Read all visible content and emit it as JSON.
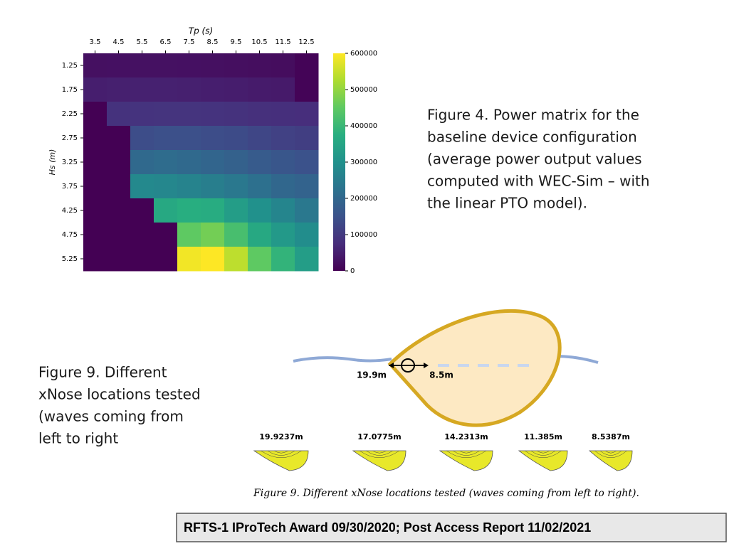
{
  "chart_data": {
    "type": "heatmap",
    "x_label": "Tp (s)",
    "y_label": "Hs (m)",
    "x_categories": [
      "3.5",
      "4.5",
      "5.5",
      "6.5",
      "7.5",
      "8.5",
      "9.5",
      "10.5",
      "11.5",
      "12.5"
    ],
    "y_categories": [
      "1.25",
      "1.75",
      "2.25",
      "2.75",
      "3.25",
      "3.75",
      "4.25",
      "4.75",
      "5.25"
    ],
    "values": [
      [
        25000,
        26000,
        27000,
        27000,
        26000,
        25000,
        24000,
        22000,
        20000,
        5000
      ],
      [
        50000,
        52000,
        54000,
        54000,
        52000,
        50000,
        48000,
        45000,
        42000,
        5000
      ],
      [
        0,
        85000,
        88000,
        90000,
        90000,
        88000,
        85000,
        82000,
        80000,
        78000
      ],
      [
        0,
        0,
        140000,
        145000,
        145000,
        140000,
        135000,
        125000,
        115000,
        110000
      ],
      [
        0,
        0,
        205000,
        210000,
        205000,
        195000,
        185000,
        170000,
        160000,
        150000
      ],
      [
        0,
        0,
        280000,
        275000,
        265000,
        255000,
        240000,
        220000,
        200000,
        190000
      ],
      [
        0,
        0,
        0,
        360000,
        375000,
        370000,
        330000,
        300000,
        270000,
        240000
      ],
      [
        0,
        0,
        0,
        0,
        450000,
        470000,
        420000,
        360000,
        320000,
        290000
      ],
      [
        0,
        0,
        0,
        0,
        590000,
        600000,
        540000,
        450000,
        390000,
        330000
      ]
    ],
    "colormap": "viridis",
    "clim": [
      0,
      600000
    ],
    "cticks": [
      0,
      100000,
      200000,
      300000,
      400000,
      500000,
      600000
    ]
  },
  "figure4_caption": [
    "Figure 4. Power matrix for the",
    "baseline device configuration",
    "(average power output values",
    "computed with WEC-Sim – with",
    "the linear PTO model)."
  ],
  "figure9_caption": [
    "Figure 9. Different",
    "xNose locations tested",
    "(waves coming from",
    "left to right"
  ],
  "diagram": {
    "left_label": "19.9m",
    "right_label": "8.5m",
    "locations": [
      "19.9237m",
      "17.0775m",
      "14.2313m",
      "11.385m",
      "8.5387m"
    ],
    "caption": "Figure 9. Different xNose locations tested (waves coming from left to right)."
  },
  "footer": "RFTS-1  IProTech Award 09/30/2020; Post Access Report 11/02/2021"
}
